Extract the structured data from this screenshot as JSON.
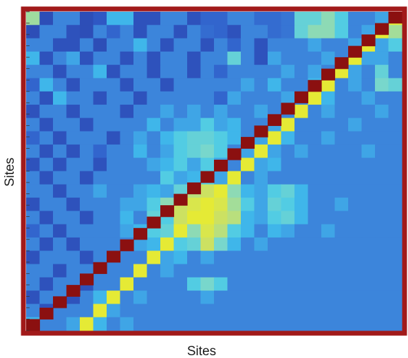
{
  "chart_data": {
    "type": "heatmap",
    "xlabel": "Sites",
    "ylabel": "Sites",
    "rows": 24,
    "cols": 28,
    "value_range": [
      0,
      1
    ],
    "colormap": [
      "#2a3a9e",
      "#2f5bc8",
      "#3f8fe0",
      "#3fc6ee",
      "#7ed9c8",
      "#c8e06a",
      "#f2ee1e"
    ],
    "diagonal_color": "#8b1010",
    "frame_color": "#a11a1a",
    "grid": false,
    "values": [
      [
        0.74,
        0.1,
        0.3,
        0.3,
        0.1,
        0.15,
        0.45,
        0.45,
        0.12,
        0.12,
        0.3,
        0.3,
        0.12,
        0.2,
        0.2,
        0.3,
        0.3,
        0.22,
        0.22,
        0.25,
        0.6,
        0.6,
        0.7,
        0.55,
        0.3,
        0.3,
        0.4,
        0.95
      ],
      [
        0.1,
        0.3,
        0.3,
        0.12,
        0.1,
        0.3,
        0.2,
        0.3,
        0.12,
        0.3,
        0.3,
        0.12,
        0.3,
        0.22,
        0.2,
        0.12,
        0.3,
        0.3,
        0.22,
        0.25,
        0.6,
        0.7,
        0.7,
        0.55,
        0.3,
        0.4,
        0.95,
        0.75
      ],
      [
        0.3,
        0.3,
        0.12,
        0.12,
        0.3,
        0.1,
        0.3,
        0.3,
        0.45,
        0.3,
        0.12,
        0.3,
        0.3,
        0.12,
        0.3,
        0.2,
        0.3,
        0.12,
        0.3,
        0.3,
        0.3,
        0.4,
        0.3,
        0.3,
        0.4,
        0.95,
        0.4,
        0.55
      ],
      [
        0.45,
        0.12,
        0.3,
        0.4,
        0.12,
        0.3,
        0.3,
        0.12,
        0.3,
        0.12,
        0.3,
        0.3,
        0.12,
        0.3,
        0.3,
        0.6,
        0.3,
        0.12,
        0.4,
        0.3,
        0.3,
        0.3,
        0.4,
        0.3,
        0.95,
        0.4,
        0.4,
        0.3
      ],
      [
        0.3,
        0.3,
        0.12,
        0.3,
        0.3,
        0.45,
        0.12,
        0.3,
        0.3,
        0.12,
        0.3,
        0.3,
        0.12,
        0.3,
        0.2,
        0.3,
        0.3,
        0.3,
        0.3,
        0.4,
        0.3,
        0.4,
        0.3,
        0.95,
        0.4,
        0.3,
        0.6,
        0.3
      ],
      [
        0.2,
        0.45,
        0.3,
        0.12,
        0.3,
        0.3,
        0.3,
        0.12,
        0.3,
        0.3,
        0.12,
        0.3,
        0.3,
        0.3,
        0.3,
        0.3,
        0.4,
        0.3,
        0.45,
        0.3,
        0.3,
        0.45,
        0.95,
        0.3,
        0.4,
        0.3,
        0.65,
        0.6
      ],
      [
        0.3,
        0.12,
        0.45,
        0.3,
        0.3,
        0.12,
        0.3,
        0.3,
        0.12,
        0.3,
        0.3,
        0.3,
        0.3,
        0.3,
        0.2,
        0.4,
        0.3,
        0.3,
        0.3,
        0.4,
        0.3,
        0.95,
        0.45,
        0.3,
        0.3,
        0.4,
        0.3,
        0.3
      ],
      [
        0.12,
        0.3,
        0.3,
        0.12,
        0.3,
        0.3,
        0.3,
        0.12,
        0.3,
        0.3,
        0.4,
        0.3,
        0.4,
        0.3,
        0.4,
        0.3,
        0.3,
        0.4,
        0.3,
        0.3,
        0.95,
        0.3,
        0.4,
        0.3,
        0.3,
        0.3,
        0.4,
        0.3
      ],
      [
        0.3,
        0.12,
        0.3,
        0.3,
        0.12,
        0.3,
        0.3,
        0.3,
        0.3,
        0.45,
        0.3,
        0.4,
        0.4,
        0.55,
        0.4,
        0.45,
        0.3,
        0.3,
        0.4,
        0.95,
        0.3,
        0.3,
        0.3,
        0.3,
        0.4,
        0.3,
        0.3,
        0.3
      ],
      [
        0.2,
        0.3,
        0.12,
        0.3,
        0.3,
        0.3,
        0.12,
        0.3,
        0.4,
        0.3,
        0.45,
        0.55,
        0.6,
        0.6,
        0.55,
        0.45,
        0.3,
        0.4,
        0.95,
        0.45,
        0.3,
        0.3,
        0.4,
        0.3,
        0.3,
        0.3,
        0.3,
        0.3
      ],
      [
        0.3,
        0.12,
        0.3,
        0.12,
        0.3,
        0.2,
        0.3,
        0.3,
        0.45,
        0.3,
        0.4,
        0.55,
        0.6,
        0.65,
        0.55,
        0.3,
        0.4,
        0.95,
        0.4,
        0.3,
        0.4,
        0.3,
        0.3,
        0.3,
        0.3,
        0.4,
        0.3,
        0.3
      ],
      [
        0.12,
        0.3,
        0.12,
        0.3,
        0.3,
        0.12,
        0.3,
        0.3,
        0.3,
        0.4,
        0.45,
        0.55,
        0.4,
        0.55,
        0.4,
        0.3,
        0.95,
        0.4,
        0.45,
        0.3,
        0.3,
        0.3,
        0.3,
        0.3,
        0.3,
        0.3,
        0.3,
        0.3
      ],
      [
        0.3,
        0.12,
        0.3,
        0.3,
        0.12,
        0.3,
        0.3,
        0.3,
        0.3,
        0.3,
        0.55,
        0.4,
        0.45,
        0.55,
        0.4,
        0.95,
        0.3,
        0.4,
        0.3,
        0.3,
        0.3,
        0.3,
        0.3,
        0.3,
        0.3,
        0.3,
        0.3,
        0.3
      ],
      [
        0.3,
        0.3,
        0.12,
        0.3,
        0.3,
        0.4,
        0.3,
        0.3,
        0.4,
        0.45,
        0.4,
        0.6,
        0.8,
        0.85,
        0.95,
        0.7,
        0.45,
        0.4,
        0.55,
        0.6,
        0.45,
        0.3,
        0.3,
        0.3,
        0.3,
        0.3,
        0.3,
        0.3
      ],
      [
        0.12,
        0.3,
        0.3,
        0.12,
        0.3,
        0.3,
        0.3,
        0.4,
        0.4,
        0.55,
        0.7,
        0.85,
        0.9,
        0.95,
        0.9,
        0.75,
        0.55,
        0.4,
        0.6,
        0.55,
        0.45,
        0.3,
        0.3,
        0.4,
        0.3,
        0.3,
        0.3,
        0.3
      ],
      [
        0.3,
        0.12,
        0.3,
        0.3,
        0.12,
        0.3,
        0.3,
        0.45,
        0.3,
        0.6,
        0.55,
        0.85,
        0.95,
        0.95,
        0.85,
        0.8,
        0.45,
        0.4,
        0.55,
        0.6,
        0.45,
        0.3,
        0.3,
        0.3,
        0.3,
        0.3,
        0.3,
        0.3
      ],
      [
        0.2,
        0.3,
        0.12,
        0.3,
        0.3,
        0.3,
        0.3,
        0.4,
        0.45,
        0.55,
        0.6,
        0.95,
        0.7,
        0.9,
        0.8,
        0.55,
        0.45,
        0.3,
        0.45,
        0.4,
        0.3,
        0.3,
        0.4,
        0.3,
        0.3,
        0.3,
        0.3,
        0.3
      ],
      [
        0.3,
        0.12,
        0.3,
        0.12,
        0.3,
        0.3,
        0.3,
        0.3,
        0.4,
        0.45,
        0.95,
        0.55,
        0.6,
        0.85,
        0.65,
        0.45,
        0.3,
        0.4,
        0.3,
        0.3,
        0.3,
        0.3,
        0.3,
        0.3,
        0.3,
        0.3,
        0.3,
        0.3
      ],
      [
        0.12,
        0.3,
        0.3,
        0.3,
        0.12,
        0.3,
        0.3,
        0.3,
        0.3,
        0.95,
        0.4,
        0.45,
        0.3,
        0.4,
        0.3,
        0.3,
        0.3,
        0.3,
        0.3,
        0.3,
        0.3,
        0.3,
        0.3,
        0.3,
        0.3,
        0.3,
        0.3,
        0.3
      ],
      [
        0.3,
        0.3,
        0.12,
        0.3,
        0.3,
        0.3,
        0.3,
        0.3,
        0.95,
        0.3,
        0.4,
        0.3,
        0.3,
        0.3,
        0.3,
        0.3,
        0.3,
        0.3,
        0.3,
        0.3,
        0.3,
        0.3,
        0.3,
        0.3,
        0.3,
        0.3,
        0.3,
        0.3
      ],
      [
        0.3,
        0.12,
        0.3,
        0.3,
        0.12,
        0.3,
        0.3,
        0.95,
        0.3,
        0.3,
        0.3,
        0.3,
        0.55,
        0.65,
        0.55,
        0.3,
        0.3,
        0.3,
        0.3,
        0.3,
        0.3,
        0.3,
        0.3,
        0.3,
        0.3,
        0.3,
        0.3,
        0.3
      ],
      [
        0.12,
        0.3,
        0.3,
        0.12,
        0.3,
        0.45,
        0.95,
        0.3,
        0.4,
        0.3,
        0.3,
        0.3,
        0.3,
        0.4,
        0.3,
        0.3,
        0.3,
        0.3,
        0.3,
        0.3,
        0.3,
        0.3,
        0.3,
        0.3,
        0.3,
        0.3,
        0.3,
        0.3
      ],
      [
        0.3,
        0.12,
        0.3,
        0.3,
        0.3,
        0.95,
        0.4,
        0.3,
        0.3,
        0.3,
        0.3,
        0.3,
        0.3,
        0.3,
        0.3,
        0.3,
        0.3,
        0.3,
        0.3,
        0.3,
        0.3,
        0.3,
        0.3,
        0.3,
        0.3,
        0.3,
        0.3,
        0.3
      ],
      [
        0.45,
        0.3,
        0.3,
        0.4,
        0.95,
        0.45,
        0.3,
        0.4,
        0.3,
        0.3,
        0.3,
        0.3,
        0.3,
        0.3,
        0.3,
        0.3,
        0.3,
        0.3,
        0.3,
        0.3,
        0.3,
        0.3,
        0.3,
        0.3,
        0.3,
        0.3,
        0.3,
        0.3
      ]
    ]
  }
}
